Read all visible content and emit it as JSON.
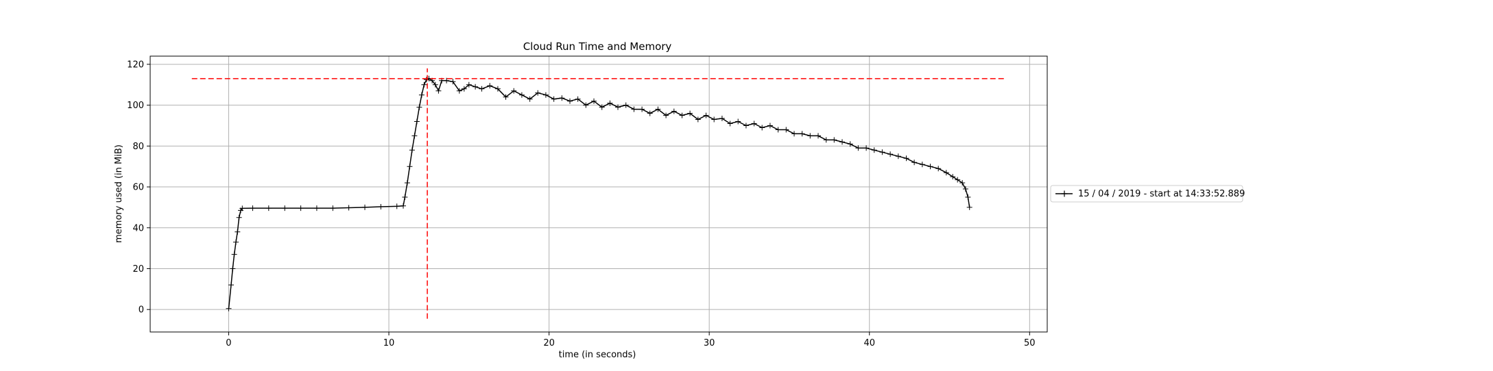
{
  "chart_data": {
    "type": "line",
    "title": "Cloud Run Time and Memory",
    "xlabel": "time (in seconds)",
    "ylabel": "memory used (in MiB)",
    "xlim": [
      -4.9,
      51.1
    ],
    "ylim": [
      -11,
      124
    ],
    "xticks": [
      0,
      10,
      20,
      30,
      40,
      50
    ],
    "yticks": [
      0,
      20,
      40,
      60,
      80,
      100,
      120
    ],
    "grid": true,
    "legend_position": "outside-right",
    "series": [
      {
        "name": "15 / 04 / 2019 - start at 14:33:52.889",
        "color": "#000000",
        "marker": "+",
        "points": [
          [
            0,
            0.5
          ],
          [
            0.15,
            12
          ],
          [
            0.25,
            20
          ],
          [
            0.35,
            27
          ],
          [
            0.45,
            33
          ],
          [
            0.55,
            38
          ],
          [
            0.65,
            45
          ],
          [
            0.75,
            48.5
          ],
          [
            0.85,
            49.5
          ],
          [
            1.5,
            49.6
          ],
          [
            2.5,
            49.6
          ],
          [
            3.5,
            49.6
          ],
          [
            4.5,
            49.6
          ],
          [
            5.5,
            49.6
          ],
          [
            6.5,
            49.6
          ],
          [
            7.5,
            49.8
          ],
          [
            8.5,
            50
          ],
          [
            9.5,
            50.3
          ],
          [
            10.5,
            50.5
          ],
          [
            10.9,
            50.7
          ],
          [
            11.0,
            55
          ],
          [
            11.15,
            62
          ],
          [
            11.3,
            70
          ],
          [
            11.45,
            78
          ],
          [
            11.6,
            85
          ],
          [
            11.75,
            92
          ],
          [
            11.9,
            99
          ],
          [
            12.05,
            105
          ],
          [
            12.2,
            110
          ],
          [
            12.35,
            112.5
          ],
          [
            12.5,
            113
          ],
          [
            12.7,
            112
          ],
          [
            12.9,
            110
          ],
          [
            13.1,
            107
          ],
          [
            13.3,
            112
          ],
          [
            13.6,
            112
          ],
          [
            14.0,
            111.5
          ],
          [
            14.4,
            107
          ],
          [
            14.7,
            108
          ],
          [
            15.0,
            110
          ],
          [
            15.4,
            109
          ],
          [
            15.8,
            108
          ],
          [
            16.3,
            109.5
          ],
          [
            16.8,
            108
          ],
          [
            17.3,
            104
          ],
          [
            17.8,
            107
          ],
          [
            18.3,
            105
          ],
          [
            18.8,
            103
          ],
          [
            19.3,
            106
          ],
          [
            19.8,
            105
          ],
          [
            20.3,
            103
          ],
          [
            20.8,
            103.5
          ],
          [
            21.3,
            102
          ],
          [
            21.8,
            103
          ],
          [
            22.3,
            100
          ],
          [
            22.8,
            102
          ],
          [
            23.3,
            99
          ],
          [
            23.8,
            101
          ],
          [
            24.3,
            99
          ],
          [
            24.8,
            100
          ],
          [
            25.3,
            98
          ],
          [
            25.8,
            98
          ],
          [
            26.3,
            96
          ],
          [
            26.8,
            98
          ],
          [
            27.3,
            95
          ],
          [
            27.8,
            97
          ],
          [
            28.3,
            95
          ],
          [
            28.8,
            96
          ],
          [
            29.3,
            93
          ],
          [
            29.8,
            95
          ],
          [
            30.3,
            93
          ],
          [
            30.8,
            93.5
          ],
          [
            31.3,
            91
          ],
          [
            31.8,
            92
          ],
          [
            32.3,
            90
          ],
          [
            32.8,
            91
          ],
          [
            33.3,
            89
          ],
          [
            33.8,
            90
          ],
          [
            34.3,
            88
          ],
          [
            34.8,
            88
          ],
          [
            35.3,
            86
          ],
          [
            35.8,
            86
          ],
          [
            36.3,
            85
          ],
          [
            36.8,
            85
          ],
          [
            37.3,
            83
          ],
          [
            37.8,
            83
          ],
          [
            38.3,
            82
          ],
          [
            38.8,
            81
          ],
          [
            39.3,
            79
          ],
          [
            39.8,
            79
          ],
          [
            40.3,
            78
          ],
          [
            40.8,
            77
          ],
          [
            41.3,
            76
          ],
          [
            41.8,
            75
          ],
          [
            42.3,
            74
          ],
          [
            42.8,
            72
          ],
          [
            43.3,
            71
          ],
          [
            43.8,
            70
          ],
          [
            44.3,
            69
          ],
          [
            44.8,
            67
          ],
          [
            45.2,
            65
          ],
          [
            45.5,
            63.5
          ],
          [
            45.8,
            62
          ],
          [
            46.0,
            59
          ],
          [
            46.15,
            55
          ],
          [
            46.25,
            50
          ]
        ]
      }
    ],
    "reference_lines": [
      {
        "type": "horizontal",
        "y": 113,
        "x_from": -2.3,
        "x_to": 48.5,
        "color": "#ff0000",
        "style": "dashed"
      },
      {
        "type": "vertical",
        "x": 12.4,
        "y_from": -4.5,
        "y_to": 118,
        "color": "#ff0000",
        "style": "dashed"
      }
    ]
  }
}
